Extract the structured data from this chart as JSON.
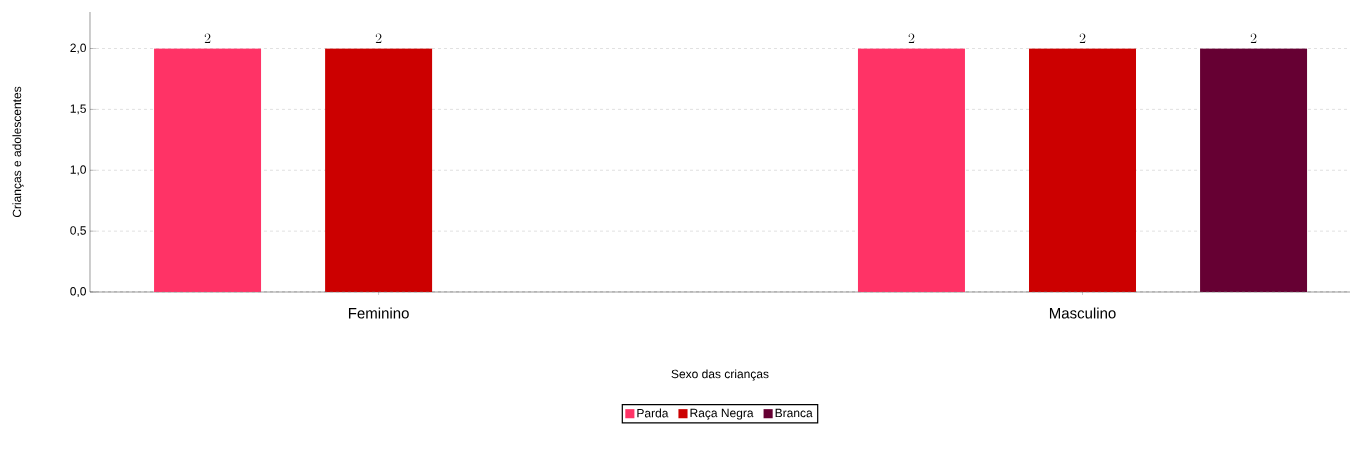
{
  "chart_data": {
    "type": "bar",
    "xlabel": "Sexo das crianças",
    "ylabel": "Crianças e adolescentes",
    "categories": [
      "Feminino",
      "Masculino"
    ],
    "series": [
      {
        "name": "Parda",
        "color": "#ff3366",
        "values": [
          2,
          2
        ]
      },
      {
        "name": "Raça Negra",
        "color": "#cc0000",
        "values": [
          2,
          2
        ]
      },
      {
        "name": "Branca",
        "color": "#660033",
        "values": [
          null,
          2
        ]
      }
    ],
    "ylim": [
      0,
      2.3
    ],
    "yticks": [
      {
        "value": 0,
        "label": "0,0"
      },
      {
        "value": 0.5,
        "label": "0,5"
      },
      {
        "value": 1,
        "label": "1,0"
      },
      {
        "value": 1.5,
        "label": "1,5"
      },
      {
        "value": 2,
        "label": "2,0"
      }
    ],
    "grid": "y",
    "legend": "bottom",
    "data_labels": true
  }
}
